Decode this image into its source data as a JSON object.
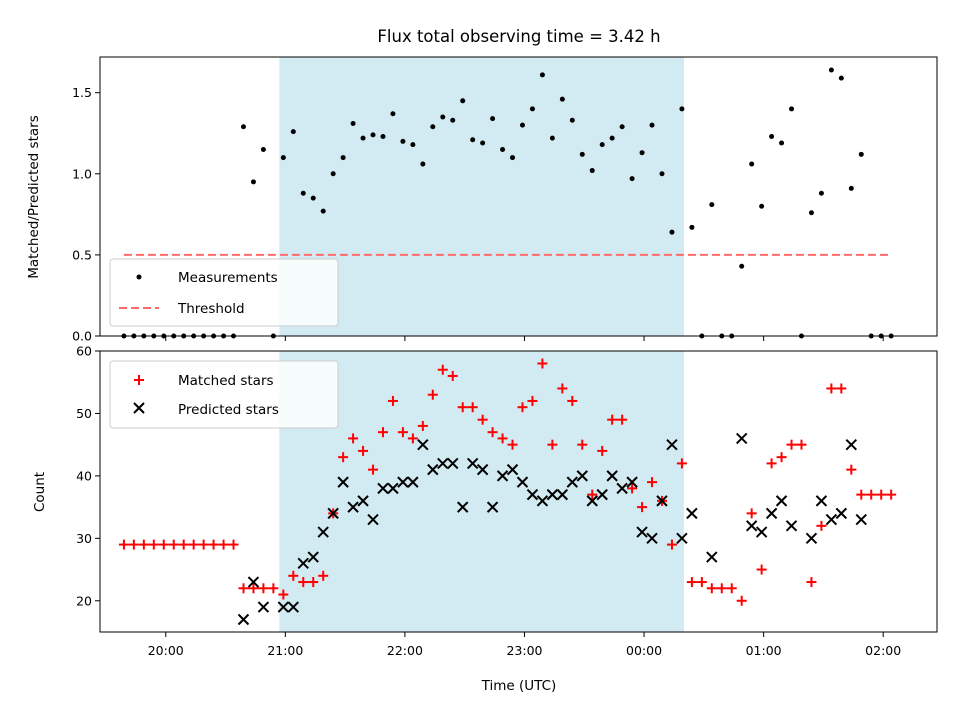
{
  "chart_data": [
    {
      "type": "scatter",
      "title": "Flux total observing time = 3.42 h",
      "xlabel": "",
      "ylabel": "Matched/Predicted stars",
      "xlim": [
        "19:27",
        "02:27"
      ],
      "ylim": [
        0,
        1.72
      ],
      "yticks": [
        0.0,
        0.5,
        1.0,
        1.5
      ],
      "ytick_labels": [
        "0.0",
        "0.5",
        "1.0",
        "1.5"
      ],
      "grid": false,
      "legend_position": "lower-left",
      "shaded_interval": {
        "start": "20:57",
        "end": "00:20",
        "color": "#add8e6"
      },
      "series": [
        {
          "name": "Measurements",
          "kind": "points",
          "color": "#000000",
          "points": [
            [
              "19:39",
              0
            ],
            [
              "19:44",
              0
            ],
            [
              "19:49",
              0
            ],
            [
              "19:54",
              0
            ],
            [
              "19:59",
              0
            ],
            [
              "20:04",
              0
            ],
            [
              "20:09",
              0
            ],
            [
              "20:14",
              0
            ],
            [
              "20:19",
              0
            ],
            [
              "20:24",
              0
            ],
            [
              "20:29",
              0
            ],
            [
              "20:34",
              0
            ],
            [
              "20:39",
              1.29
            ],
            [
              "20:44",
              0.95
            ],
            [
              "20:49",
              1.15
            ],
            [
              "20:54",
              0
            ],
            [
              "20:59",
              1.1
            ],
            [
              "21:04",
              1.26
            ],
            [
              "21:09",
              0.88
            ],
            [
              "21:14",
              0.85
            ],
            [
              "21:19",
              0.77
            ],
            [
              "21:24",
              1.0
            ],
            [
              "21:29",
              1.1
            ],
            [
              "21:34",
              1.31
            ],
            [
              "21:39",
              1.22
            ],
            [
              "21:44",
              1.24
            ],
            [
              "21:49",
              1.23
            ],
            [
              "21:54",
              1.37
            ],
            [
              "21:59",
              1.2
            ],
            [
              "22:04",
              1.18
            ],
            [
              "22:09",
              1.06
            ],
            [
              "22:14",
              1.29
            ],
            [
              "22:19",
              1.35
            ],
            [
              "22:24",
              1.33
            ],
            [
              "22:29",
              1.45
            ],
            [
              "22:34",
              1.21
            ],
            [
              "22:39",
              1.19
            ],
            [
              "22:44",
              1.34
            ],
            [
              "22:49",
              1.15
            ],
            [
              "22:54",
              1.1
            ],
            [
              "22:59",
              1.3
            ],
            [
              "23:04",
              1.4
            ],
            [
              "23:09",
              1.61
            ],
            [
              "23:14",
              1.22
            ],
            [
              "23:19",
              1.46
            ],
            [
              "23:24",
              1.33
            ],
            [
              "23:29",
              1.12
            ],
            [
              "23:34",
              1.02
            ],
            [
              "23:39",
              1.18
            ],
            [
              "23:44",
              1.22
            ],
            [
              "23:49",
              1.29
            ],
            [
              "23:54",
              0.97
            ],
            [
              "23:59",
              1.13
            ],
            [
              "00:04",
              1.3
            ],
            [
              "00:09",
              1.0
            ],
            [
              "00:14",
              0.64
            ],
            [
              "00:19",
              1.4
            ],
            [
              "00:24",
              0.67
            ],
            [
              "00:29",
              0
            ],
            [
              "00:34",
              0.81
            ],
            [
              "00:39",
              0
            ],
            [
              "00:44",
              0
            ],
            [
              "00:49",
              0.43
            ],
            [
              "00:54",
              1.06
            ],
            [
              "00:59",
              0.8
            ],
            [
              "01:04",
              1.23
            ],
            [
              "01:09",
              1.19
            ],
            [
              "01:14",
              1.4
            ],
            [
              "01:19",
              0
            ],
            [
              "01:24",
              0.76
            ],
            [
              "01:29",
              0.88
            ],
            [
              "01:34",
              1.64
            ],
            [
              "01:39",
              1.59
            ],
            [
              "01:44",
              0.91
            ],
            [
              "01:49",
              1.12
            ],
            [
              "01:54",
              0
            ],
            [
              "01:59",
              0
            ],
            [
              "02:04",
              0
            ]
          ]
        },
        {
          "name": "Threshold",
          "kind": "dashed-line",
          "color": "#ff6b6b",
          "y": 0.5,
          "x_range": [
            "19:39",
            "02:04"
          ]
        }
      ]
    },
    {
      "type": "scatter",
      "title": "",
      "xlabel": "Time (UTC)",
      "ylabel": "Count",
      "xlim": [
        "19:27",
        "02:27"
      ],
      "ylim": [
        15,
        60
      ],
      "yticks": [
        20,
        30,
        40,
        50,
        60
      ],
      "ytick_labels": [
        "20",
        "30",
        "40",
        "50",
        "60"
      ],
      "xticks": [
        "20:00",
        "21:00",
        "22:00",
        "23:00",
        "00:00",
        "01:00",
        "02:00"
      ],
      "xtick_labels": [
        "20:00",
        "21:00",
        "22:00",
        "23:00",
        "00:00",
        "01:00",
        "02:00"
      ],
      "grid": false,
      "legend_position": "upper-left",
      "shaded_interval": {
        "start": "20:57",
        "end": "00:20",
        "color": "#add8e6"
      },
      "series": [
        {
          "name": "Matched stars",
          "marker": "plus",
          "color": "#ff0000",
          "points": [
            [
              "19:39",
              29
            ],
            [
              "19:44",
              29
            ],
            [
              "19:49",
              29
            ],
            [
              "19:54",
              29
            ],
            [
              "19:59",
              29
            ],
            [
              "20:04",
              29
            ],
            [
              "20:09",
              29
            ],
            [
              "20:14",
              29
            ],
            [
              "20:19",
              29
            ],
            [
              "20:24",
              29
            ],
            [
              "20:29",
              29
            ],
            [
              "20:34",
              29
            ],
            [
              "20:39",
              22
            ],
            [
              "20:44",
              22
            ],
            [
              "20:49",
              22
            ],
            [
              "20:54",
              22
            ],
            [
              "20:59",
              21
            ],
            [
              "21:04",
              24
            ],
            [
              "21:09",
              23
            ],
            [
              "21:14",
              23
            ],
            [
              "21:19",
              24
            ],
            [
              "21:24",
              34
            ],
            [
              "21:29",
              43
            ],
            [
              "21:34",
              46
            ],
            [
              "21:39",
              44
            ],
            [
              "21:44",
              41
            ],
            [
              "21:49",
              47
            ],
            [
              "21:54",
              52
            ],
            [
              "21:59",
              47
            ],
            [
              "22:04",
              46
            ],
            [
              "22:09",
              48
            ],
            [
              "22:14",
              53
            ],
            [
              "22:19",
              57
            ],
            [
              "22:24",
              56
            ],
            [
              "22:29",
              51
            ],
            [
              "22:34",
              51
            ],
            [
              "22:39",
              49
            ],
            [
              "22:44",
              47
            ],
            [
              "22:49",
              46
            ],
            [
              "22:54",
              45
            ],
            [
              "22:59",
              51
            ],
            [
              "23:04",
              52
            ],
            [
              "23:09",
              58
            ],
            [
              "23:14",
              45
            ],
            [
              "23:19",
              54
            ],
            [
              "23:24",
              52
            ],
            [
              "23:29",
              45
            ],
            [
              "23:34",
              37
            ],
            [
              "23:39",
              44
            ],
            [
              "23:44",
              49
            ],
            [
              "23:49",
              49
            ],
            [
              "23:54",
              38
            ],
            [
              "23:59",
              35
            ],
            [
              "00:04",
              39
            ],
            [
              "00:09",
              36
            ],
            [
              "00:14",
              29
            ],
            [
              "00:19",
              42
            ],
            [
              "00:24",
              23
            ],
            [
              "00:29",
              23
            ],
            [
              "00:34",
              22
            ],
            [
              "00:39",
              22
            ],
            [
              "00:44",
              22
            ],
            [
              "00:49",
              20
            ],
            [
              "00:54",
              34
            ],
            [
              "00:59",
              25
            ],
            [
              "01:04",
              42
            ],
            [
              "01:09",
              43
            ],
            [
              "01:14",
              45
            ],
            [
              "01:19",
              45
            ],
            [
              "01:24",
              23
            ],
            [
              "01:29",
              32
            ],
            [
              "01:34",
              54
            ],
            [
              "01:39",
              54
            ],
            [
              "01:44",
              41
            ],
            [
              "01:49",
              37
            ],
            [
              "01:54",
              37
            ],
            [
              "01:59",
              37
            ],
            [
              "02:04",
              37
            ]
          ]
        },
        {
          "name": "Predicted stars",
          "marker": "x",
          "color": "#000000",
          "points": [
            [
              "20:39",
              17
            ],
            [
              "20:44",
              23
            ],
            [
              "20:49",
              19
            ],
            [
              "20:59",
              19
            ],
            [
              "21:04",
              19
            ],
            [
              "21:09",
              26
            ],
            [
              "21:14",
              27
            ],
            [
              "21:19",
              31
            ],
            [
              "21:24",
              34
            ],
            [
              "21:29",
              39
            ],
            [
              "21:34",
              35
            ],
            [
              "21:39",
              36
            ],
            [
              "21:44",
              33
            ],
            [
              "21:49",
              38
            ],
            [
              "21:54",
              38
            ],
            [
              "21:59",
              39
            ],
            [
              "22:04",
              39
            ],
            [
              "22:09",
              45
            ],
            [
              "22:14",
              41
            ],
            [
              "22:19",
              42
            ],
            [
              "22:24",
              42
            ],
            [
              "22:29",
              35
            ],
            [
              "22:34",
              42
            ],
            [
              "22:39",
              41
            ],
            [
              "22:44",
              35
            ],
            [
              "22:49",
              40
            ],
            [
              "22:54",
              41
            ],
            [
              "22:59",
              39
            ],
            [
              "23:04",
              37
            ],
            [
              "23:09",
              36
            ],
            [
              "23:14",
              37
            ],
            [
              "23:19",
              37
            ],
            [
              "23:24",
              39
            ],
            [
              "23:29",
              40
            ],
            [
              "23:34",
              36
            ],
            [
              "23:39",
              37
            ],
            [
              "23:44",
              40
            ],
            [
              "23:49",
              38
            ],
            [
              "23:54",
              39
            ],
            [
              "23:59",
              31
            ],
            [
              "00:04",
              30
            ],
            [
              "00:09",
              36
            ],
            [
              "00:14",
              45
            ],
            [
              "00:19",
              30
            ],
            [
              "00:24",
              34
            ],
            [
              "00:34",
              27
            ],
            [
              "00:49",
              46
            ],
            [
              "00:54",
              32
            ],
            [
              "00:59",
              31
            ],
            [
              "01:04",
              34
            ],
            [
              "01:09",
              36
            ],
            [
              "01:14",
              32
            ],
            [
              "01:24",
              30
            ],
            [
              "01:29",
              36
            ],
            [
              "01:34",
              33
            ],
            [
              "01:39",
              34
            ],
            [
              "01:44",
              45
            ],
            [
              "01:49",
              33
            ]
          ]
        }
      ]
    }
  ]
}
